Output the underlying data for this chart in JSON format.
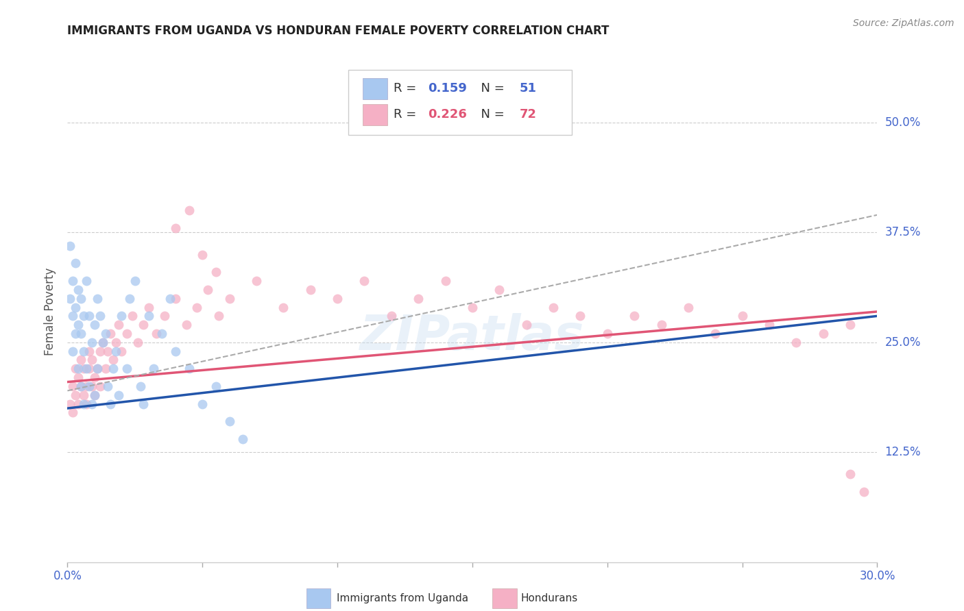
{
  "title": "IMMIGRANTS FROM UGANDA VS HONDURAN FEMALE POVERTY CORRELATION CHART",
  "source": "Source: ZipAtlas.com",
  "ylabel": "Female Poverty",
  "ytick_labels": [
    "50.0%",
    "37.5%",
    "25.0%",
    "12.5%"
  ],
  "ytick_values": [
    0.5,
    0.375,
    0.25,
    0.125
  ],
  "xlim": [
    0.0,
    0.3
  ],
  "ylim": [
    0.0,
    0.57
  ],
  "legend_label1": "Immigrants from Uganda",
  "legend_label2": "Hondurans",
  "r1": "0.159",
  "n1": "51",
  "r2": "0.226",
  "n2": "72",
  "color_blue": "#a8c8f0",
  "color_pink": "#f5b0c5",
  "line_color_blue": "#2255aa",
  "line_color_pink": "#e05575",
  "line_color_dashed": "#aaaaaa",
  "watermark": "ZIPatlas",
  "uganda_x": [
    0.001,
    0.001,
    0.002,
    0.002,
    0.002,
    0.003,
    0.003,
    0.003,
    0.004,
    0.004,
    0.004,
    0.005,
    0.005,
    0.005,
    0.006,
    0.006,
    0.006,
    0.007,
    0.007,
    0.008,
    0.008,
    0.009,
    0.009,
    0.01,
    0.01,
    0.011,
    0.011,
    0.012,
    0.013,
    0.014,
    0.015,
    0.016,
    0.017,
    0.018,
    0.019,
    0.02,
    0.022,
    0.023,
    0.025,
    0.027,
    0.028,
    0.03,
    0.032,
    0.035,
    0.038,
    0.04,
    0.045,
    0.05,
    0.055,
    0.06,
    0.065
  ],
  "uganda_y": [
    0.36,
    0.3,
    0.32,
    0.28,
    0.24,
    0.34,
    0.29,
    0.26,
    0.31,
    0.27,
    0.22,
    0.3,
    0.26,
    0.2,
    0.28,
    0.24,
    0.18,
    0.32,
    0.22,
    0.28,
    0.2,
    0.25,
    0.18,
    0.27,
    0.19,
    0.3,
    0.22,
    0.28,
    0.25,
    0.26,
    0.2,
    0.18,
    0.22,
    0.24,
    0.19,
    0.28,
    0.22,
    0.3,
    0.32,
    0.2,
    0.18,
    0.28,
    0.22,
    0.26,
    0.3,
    0.24,
    0.22,
    0.18,
    0.2,
    0.16,
    0.14
  ],
  "honduran_x": [
    0.001,
    0.002,
    0.002,
    0.003,
    0.003,
    0.004,
    0.004,
    0.005,
    0.005,
    0.006,
    0.006,
    0.007,
    0.007,
    0.008,
    0.008,
    0.009,
    0.009,
    0.01,
    0.01,
    0.011,
    0.012,
    0.012,
    0.013,
    0.014,
    0.015,
    0.016,
    0.017,
    0.018,
    0.019,
    0.02,
    0.022,
    0.024,
    0.026,
    0.028,
    0.03,
    0.033,
    0.036,
    0.04,
    0.044,
    0.048,
    0.052,
    0.056,
    0.06,
    0.07,
    0.08,
    0.09,
    0.1,
    0.11,
    0.12,
    0.13,
    0.14,
    0.15,
    0.16,
    0.17,
    0.18,
    0.19,
    0.2,
    0.21,
    0.22,
    0.23,
    0.24,
    0.25,
    0.26,
    0.27,
    0.28,
    0.29,
    0.04,
    0.045,
    0.05,
    0.055,
    0.29,
    0.295
  ],
  "honduran_y": [
    0.18,
    0.2,
    0.17,
    0.22,
    0.19,
    0.21,
    0.18,
    0.2,
    0.23,
    0.19,
    0.22,
    0.2,
    0.18,
    0.22,
    0.24,
    0.2,
    0.23,
    0.21,
    0.19,
    0.22,
    0.24,
    0.2,
    0.25,
    0.22,
    0.24,
    0.26,
    0.23,
    0.25,
    0.27,
    0.24,
    0.26,
    0.28,
    0.25,
    0.27,
    0.29,
    0.26,
    0.28,
    0.3,
    0.27,
    0.29,
    0.31,
    0.28,
    0.3,
    0.32,
    0.29,
    0.31,
    0.3,
    0.32,
    0.28,
    0.3,
    0.32,
    0.29,
    0.31,
    0.27,
    0.29,
    0.28,
    0.26,
    0.28,
    0.27,
    0.29,
    0.26,
    0.28,
    0.27,
    0.25,
    0.26,
    0.27,
    0.38,
    0.4,
    0.35,
    0.33,
    0.1,
    0.08
  ]
}
